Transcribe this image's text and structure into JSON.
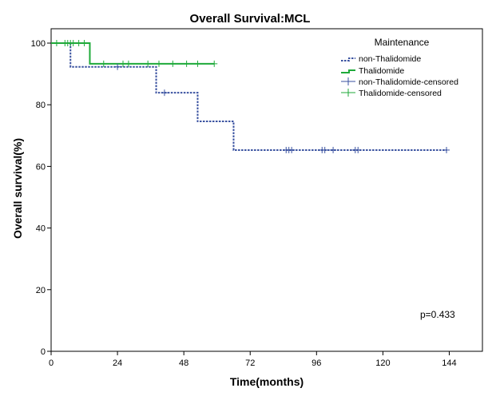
{
  "chart_data": {
    "type": "line",
    "subtype": "kaplan-meier",
    "title": "Overall Survival:MCL",
    "xlabel": "Time(months)",
    "ylabel": "Overall survival(%)",
    "xlim": [
      0,
      156
    ],
    "ylim": [
      0,
      105
    ],
    "xticks": [
      0,
      24,
      48,
      72,
      96,
      120,
      144
    ],
    "yticks": [
      0,
      20,
      40,
      60,
      80,
      100
    ],
    "grid": false,
    "legend": {
      "title": "Maintenance",
      "placement": "top-right",
      "entries": [
        "non-Thalidomide",
        "Thalidomide",
        "non-Thalidomide-censored",
        "Thalidomide-censored"
      ]
    },
    "series": [
      {
        "name": "non-Thalidomide",
        "color": "#3a52a0",
        "style": "dotted",
        "steps": [
          [
            0,
            100
          ],
          [
            7,
            92.3
          ],
          [
            38,
            83.9
          ],
          [
            53,
            74.6
          ],
          [
            66,
            65.3
          ],
          [
            143,
            65.3
          ]
        ],
        "censored": [
          [
            24,
            92.3
          ],
          [
            41,
            83.9
          ],
          [
            85,
            65.3
          ],
          [
            86,
            65.3
          ],
          [
            87,
            65.3
          ],
          [
            98,
            65.3
          ],
          [
            99,
            65.3
          ],
          [
            102,
            65.3
          ],
          [
            110,
            65.3
          ],
          [
            111,
            65.3
          ],
          [
            143,
            65.3
          ]
        ]
      },
      {
        "name": "Thalidomide",
        "color": "#1faa3a",
        "style": "solid",
        "steps": [
          [
            0,
            100
          ],
          [
            14,
            93.3
          ],
          [
            59,
            93.3
          ]
        ],
        "censored": [
          [
            2,
            100
          ],
          [
            5,
            100
          ],
          [
            6,
            100
          ],
          [
            7,
            100
          ],
          [
            8,
            100
          ],
          [
            10,
            100
          ],
          [
            12,
            100
          ],
          [
            19,
            93.3
          ],
          [
            26,
            93.3
          ],
          [
            28,
            93.3
          ],
          [
            35,
            93.3
          ],
          [
            39,
            93.3
          ],
          [
            44,
            93.3
          ],
          [
            49,
            93.3
          ],
          [
            53,
            93.3
          ],
          [
            59,
            93.3
          ]
        ]
      }
    ],
    "annotation": "p=0.433",
    "colors": {
      "non_thalidomide": "#3a52a0",
      "thalidomide": "#1faa3a"
    }
  }
}
